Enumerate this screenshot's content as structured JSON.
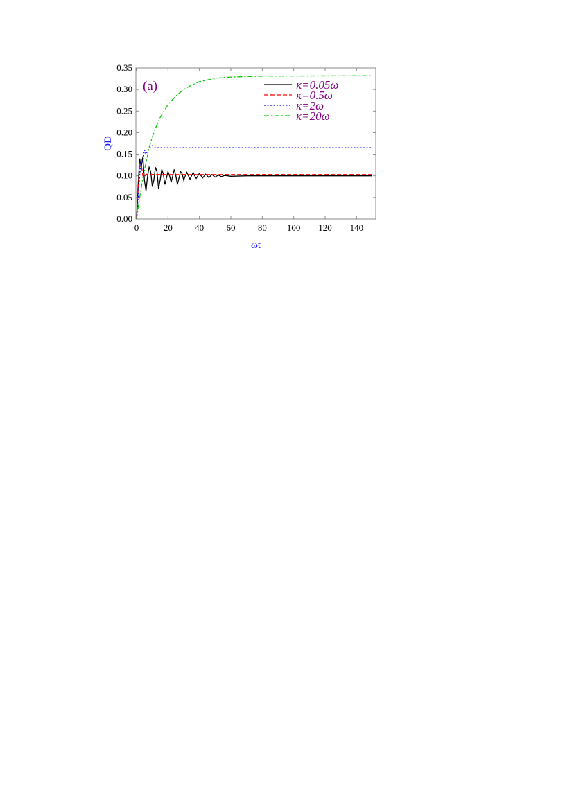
{
  "chart_data": {
    "type": "line",
    "panel_label": "(a)",
    "xlabel": "ωt",
    "ylabel": "QD",
    "xlim": [
      0,
      150
    ],
    "ylim": [
      0,
      0.35
    ],
    "xticks": [
      0,
      20,
      40,
      60,
      80,
      100,
      120,
      140
    ],
    "xtick_labels": [
      "0",
      "20",
      "40",
      "60",
      "80",
      "100",
      "120",
      "140"
    ],
    "yticks": [
      0,
      0.05,
      0.1,
      0.15,
      0.2,
      0.25,
      0.3,
      0.35
    ],
    "ytick_labels": [
      "0.00",
      "0.05",
      "0.10",
      "0.15",
      "0.20",
      "0.25",
      "0.30",
      "0.35"
    ],
    "grid": false,
    "legend_position": "top-right",
    "axis_label_color": "#1f1fff",
    "legend_text_color": "#800080",
    "series": [
      {
        "name": "κ=0.05ω",
        "color": "#000000",
        "dash": "solid",
        "x": [
          0,
          1,
          2,
          3,
          4,
          5,
          6,
          7,
          8,
          9,
          10,
          11,
          12,
          13,
          14,
          15,
          16,
          17,
          18,
          19,
          20,
          21,
          22,
          23,
          24,
          25,
          26,
          27,
          28,
          29,
          30,
          31,
          32,
          33,
          34,
          35,
          36,
          37,
          38,
          39,
          40,
          42,
          44,
          46,
          48,
          50,
          52,
          54,
          56,
          60,
          70,
          150
        ],
        "y": [
          0,
          0.08,
          0.14,
          0.12,
          0.145,
          0.09,
          0.065,
          0.1,
          0.12,
          0.11,
          0.075,
          0.09,
          0.12,
          0.11,
          0.07,
          0.09,
          0.115,
          0.105,
          0.08,
          0.095,
          0.11,
          0.1,
          0.085,
          0.1,
          0.115,
          0.1,
          0.08,
          0.095,
          0.11,
          0.105,
          0.09,
          0.1,
          0.108,
          0.1,
          0.092,
          0.1,
          0.108,
          0.1,
          0.094,
          0.1,
          0.106,
          0.095,
          0.104,
          0.096,
          0.103,
          0.097,
          0.102,
          0.098,
          0.101,
          0.099,
          0.1,
          0.1
        ]
      },
      {
        "name": "κ=0.5ω",
        "color": "#ff0000",
        "dash": "dashed",
        "x": [
          0,
          1,
          2,
          3,
          4,
          5,
          6,
          8,
          150
        ],
        "y": [
          0,
          0.07,
          0.12,
          0.125,
          0.1,
          0.097,
          0.104,
          0.103,
          0.103
        ]
      },
      {
        "name": "κ=2ω",
        "color": "#0000ff",
        "dash": "dotted",
        "x": [
          0,
          1,
          2,
          3,
          4,
          5,
          6,
          8,
          10,
          12,
          150
        ],
        "y": [
          0,
          0.05,
          0.1,
          0.14,
          0.13,
          0.16,
          0.15,
          0.165,
          0.17,
          0.165,
          0.165
        ]
      },
      {
        "name": "κ=20ω",
        "color": "#00cc00",
        "dash": "dashdot",
        "x": [
          0,
          2,
          4,
          6,
          8,
          10,
          12,
          15,
          20,
          25,
          30,
          35,
          40,
          50,
          60,
          80,
          150
        ],
        "y": [
          0,
          0.05,
          0.095,
          0.13,
          0.165,
          0.19,
          0.21,
          0.235,
          0.265,
          0.285,
          0.3,
          0.31,
          0.318,
          0.326,
          0.329,
          0.331,
          0.332
        ]
      }
    ]
  }
}
